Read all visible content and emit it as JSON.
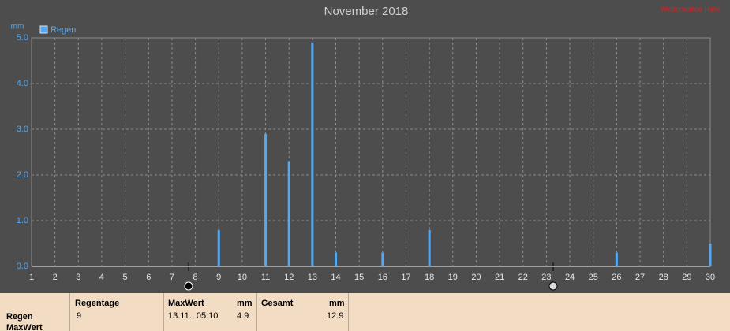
{
  "chart_data": {
    "type": "bar",
    "title": "November 2018",
    "station": "Wetterstation Halle",
    "y_unit": "mm",
    "series": [
      {
        "name": "Regen",
        "color": "#55a8f0",
        "x": [
          9,
          11,
          12,
          13,
          14,
          16,
          18,
          26,
          30
        ],
        "values": [
          0.8,
          2.9,
          2.3,
          4.9,
          0.3,
          0.3,
          0.8,
          0.3,
          0.5
        ]
      }
    ],
    "xlim": [
      1,
      30
    ],
    "xticks": [
      1,
      2,
      3,
      4,
      5,
      6,
      7,
      8,
      9,
      10,
      11,
      12,
      13,
      14,
      15,
      16,
      17,
      18,
      19,
      20,
      21,
      22,
      23,
      24,
      25,
      26,
      27,
      28,
      29,
      30
    ],
    "ylim": [
      0,
      5
    ],
    "yticks": [
      {
        "value": 0,
        "label": "0.0"
      },
      {
        "value": 1,
        "label": "1.0"
      },
      {
        "value": 2,
        "label": "2.0"
      },
      {
        "value": 3,
        "label": "3.0"
      },
      {
        "value": 4,
        "label": "4.0"
      },
      {
        "value": 5,
        "label": "5.0"
      }
    ],
    "grid": true
  },
  "table": {
    "row_labels": [
      "Regen",
      "MaxWert"
    ],
    "columns": [
      {
        "header": "Regentage",
        "value": "9"
      },
      {
        "header": "MaxWert",
        "unit": "mm",
        "time": "13.11.  05:10",
        "value": "4.9"
      },
      {
        "header": "Gesamt",
        "unit": "mm",
        "value": "12.9"
      }
    ]
  }
}
